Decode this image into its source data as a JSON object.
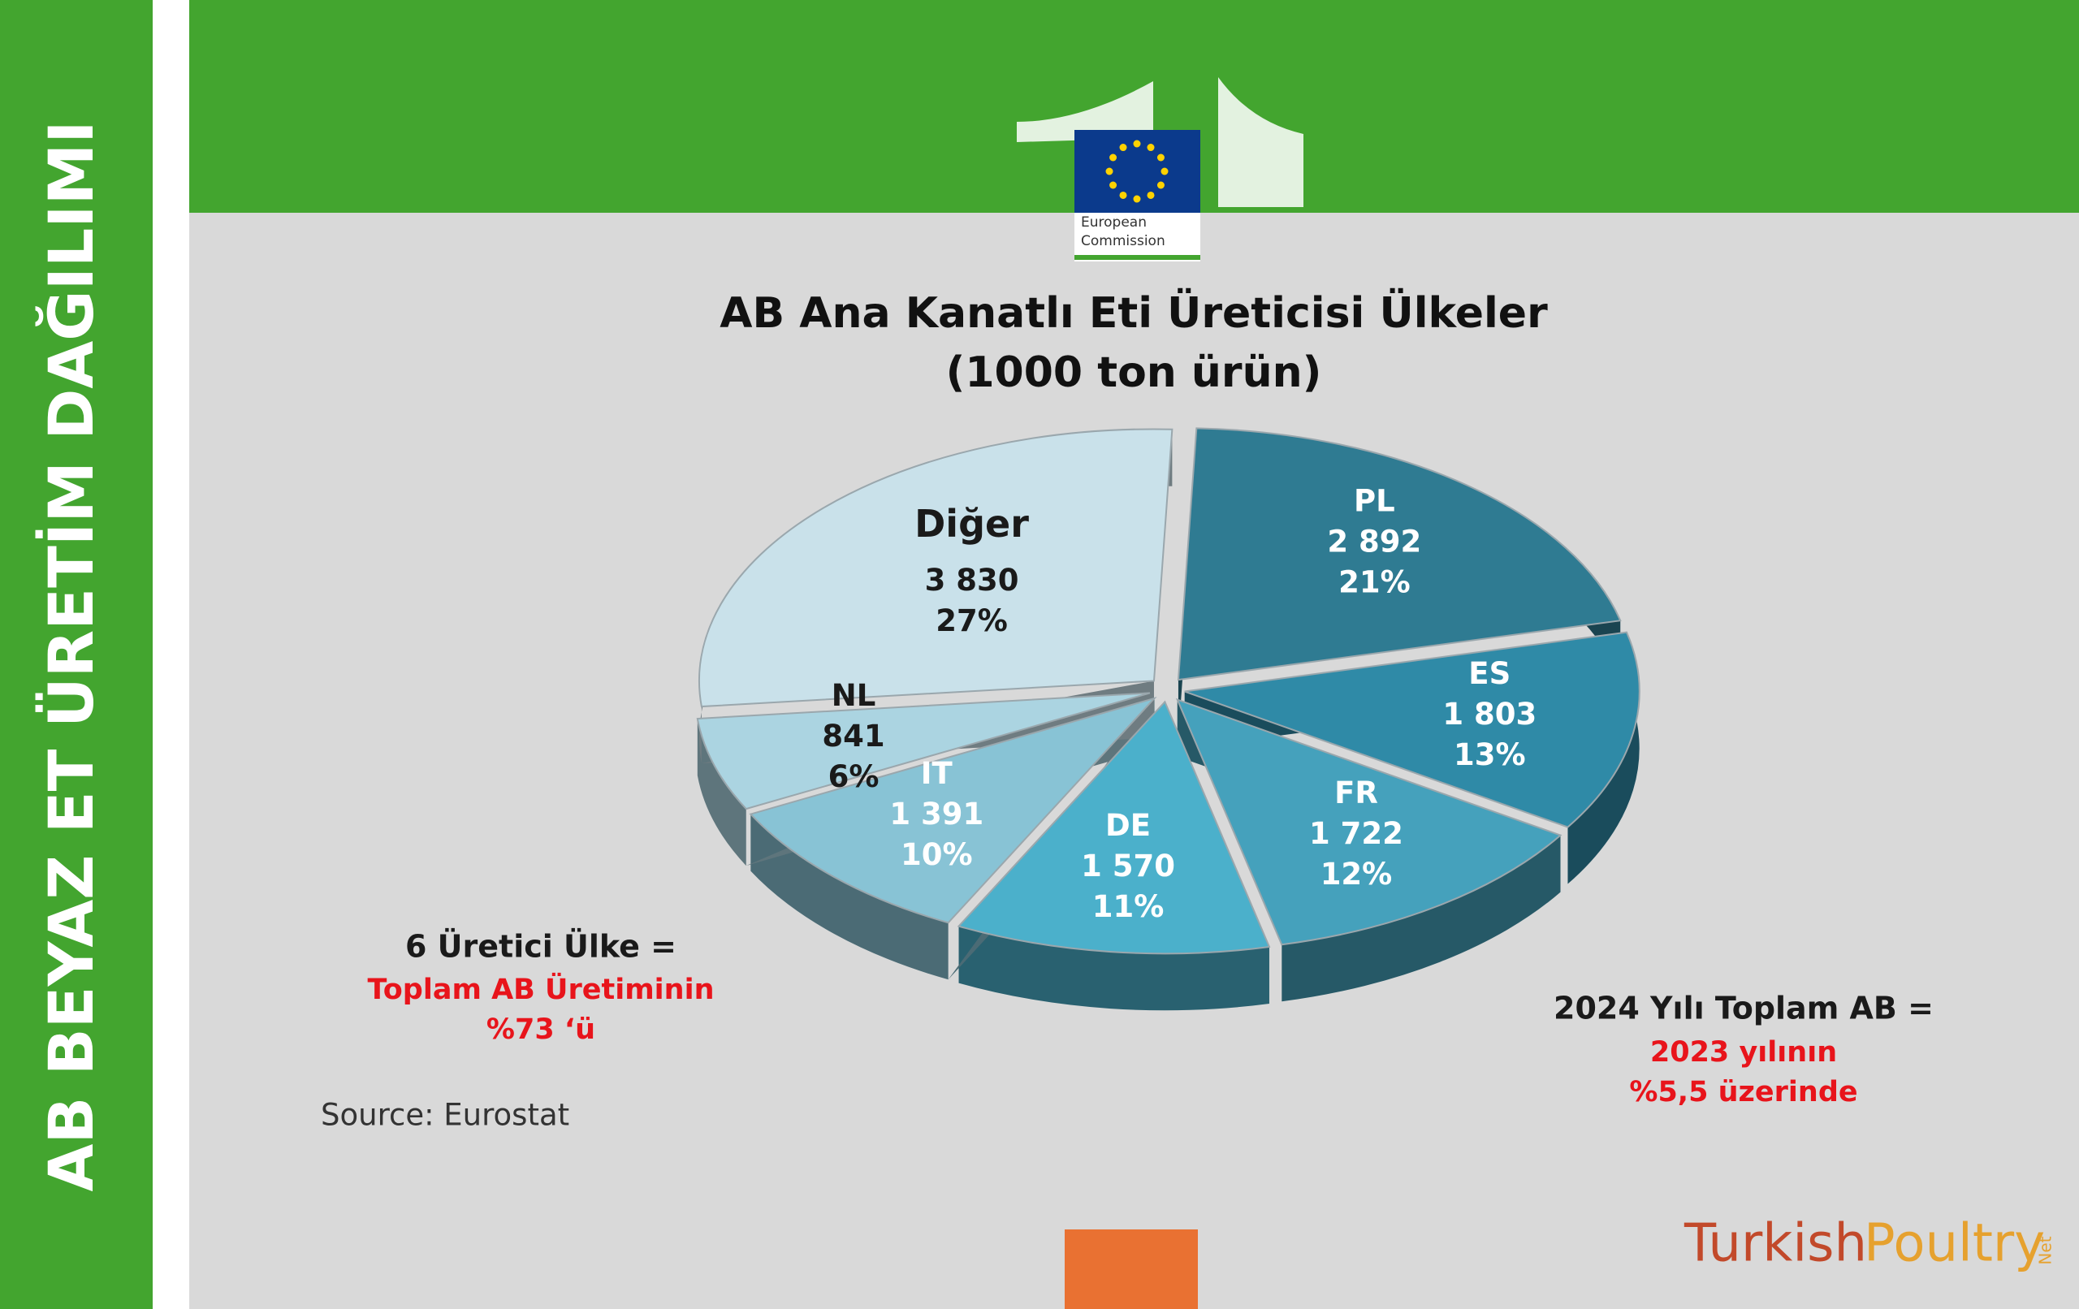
{
  "side_title": "AB BEYAZ ET ÜRETİM DAĞILIMI",
  "logo": {
    "lines": [
      "European",
      "Commission"
    ]
  },
  "chart_data": {
    "type": "pie",
    "title": "AB Ana Kanatlı Eti Üreticisi Ülkeler",
    "subtitle": "(1000 ton ürün)",
    "categories": [
      "PL",
      "ES",
      "FR",
      "DE",
      "IT",
      "NL",
      "Diğer"
    ],
    "values": [
      2892,
      1803,
      1722,
      1570,
      1391,
      841,
      3830
    ],
    "value_labels": [
      "2 892",
      "1 803",
      "1 722",
      "1 570",
      "1 391",
      "841",
      "3 830"
    ],
    "percent_labels": [
      "21%",
      "13%",
      "12%",
      "11%",
      "10%",
      "6%",
      "27%"
    ],
    "colors": [
      "#2f7b92",
      "#2f8aa7",
      "#45a1bc",
      "#4bb0cb",
      "#88c3d5",
      "#abd4e1",
      "#c9e1ea"
    ]
  },
  "note_left": {
    "title": "6 Üretici Ülke  =",
    "lines": [
      "Toplam AB Üretiminin",
      "%73 ‘ü"
    ]
  },
  "note_right": {
    "title": "2024 Yılı Toplam AB  =",
    "lines": [
      "2023 yılının",
      "%5,5 üzerinde"
    ]
  },
  "source": "Source:  Eurostat",
  "brand": {
    "first": "Turkish",
    "second": "Poultry",
    "suffix": "Net"
  }
}
